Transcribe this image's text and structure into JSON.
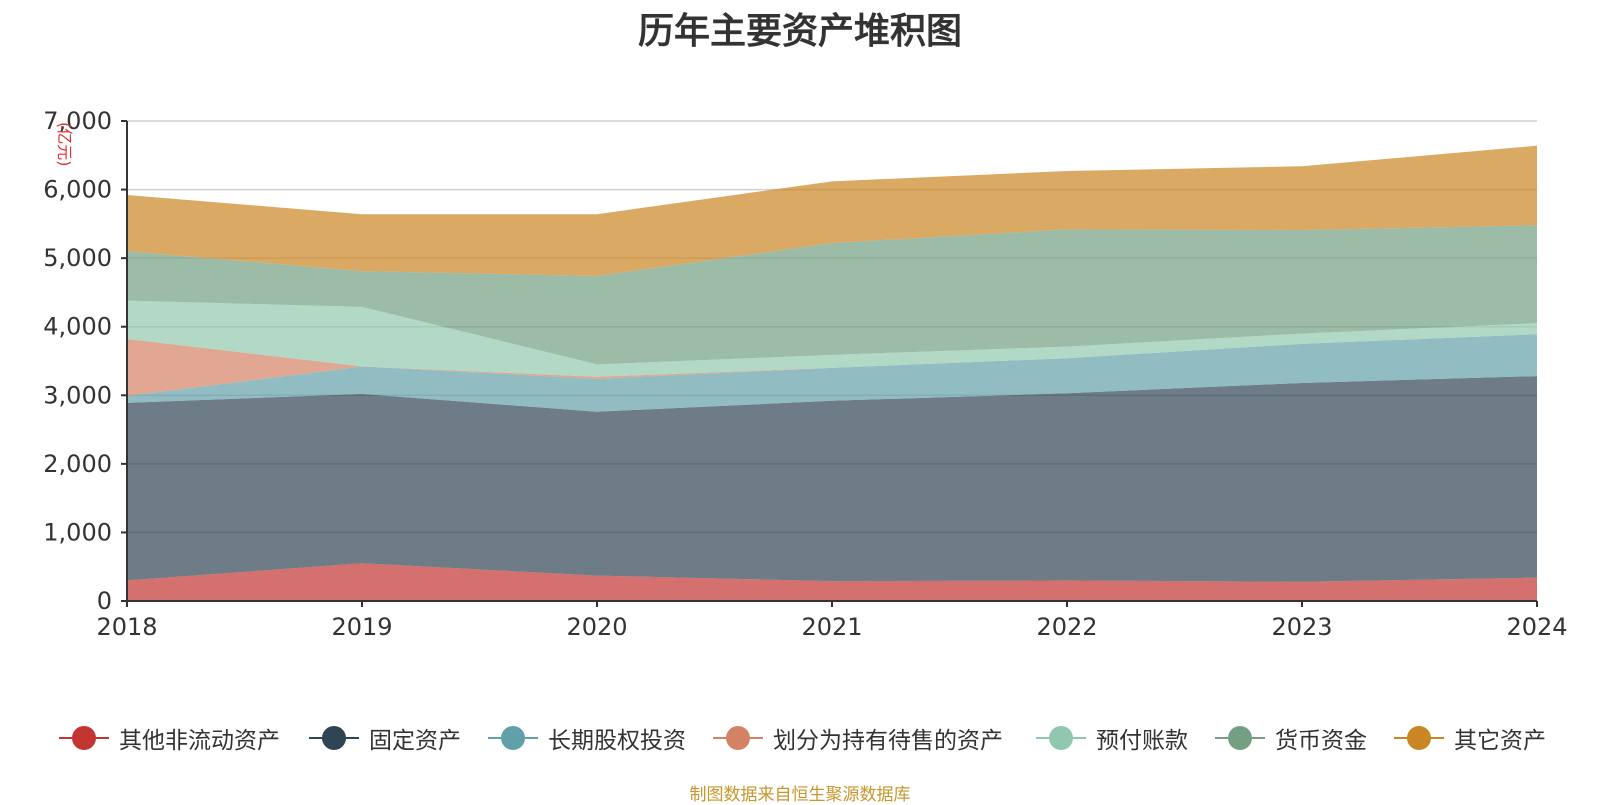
{
  "title": "历年主要资产堆积图",
  "source": "制图数据来自恒生聚源数据库",
  "chart_data": {
    "type": "area",
    "stacked": true,
    "title": "历年主要资产堆积图",
    "unit_label": "(亿元)",
    "categories": [
      "2018",
      "2019",
      "2020",
      "2021",
      "2022",
      "2023",
      "2024"
    ],
    "ylim": [
      0,
      7000
    ],
    "yticks": [
      0,
      1000,
      2000,
      3000,
      4000,
      5000,
      6000,
      7000
    ],
    "ytick_labels": [
      "0",
      "1,000",
      "2,000",
      "3,000",
      "4,000",
      "5,000",
      "6,000",
      "7,000"
    ],
    "grid": true,
    "legend_position": "bottom",
    "series": [
      {
        "name": "其他非流动资产",
        "color": "#c23531",
        "values": [
          300,
          550,
          370,
          290,
          300,
          280,
          340
        ]
      },
      {
        "name": "固定资产",
        "color": "#2f4554",
        "values": [
          2590,
          2470,
          2390,
          2630,
          2730,
          2900,
          2940
        ]
      },
      {
        "name": "长期股权投资",
        "color": "#61a0a8",
        "values": [
          100,
          400,
          480,
          480,
          510,
          570,
          610
        ]
      },
      {
        "name": "划分为持有待售的资产",
        "color": "#d48265",
        "values": [
          830,
          0,
          30,
          0,
          0,
          0,
          0
        ]
      },
      {
        "name": "预付账款",
        "color": "#91c7ae",
        "values": [
          560,
          870,
          180,
          190,
          170,
          150,
          160
        ]
      },
      {
        "name": "货币资金",
        "color": "#749f83",
        "values": [
          720,
          520,
          1290,
          1630,
          1710,
          1510,
          1430
        ]
      },
      {
        "name": "其它资产",
        "color": "#ca8622",
        "values": [
          820,
          830,
          900,
          900,
          850,
          930,
          1160
        ]
      }
    ]
  }
}
